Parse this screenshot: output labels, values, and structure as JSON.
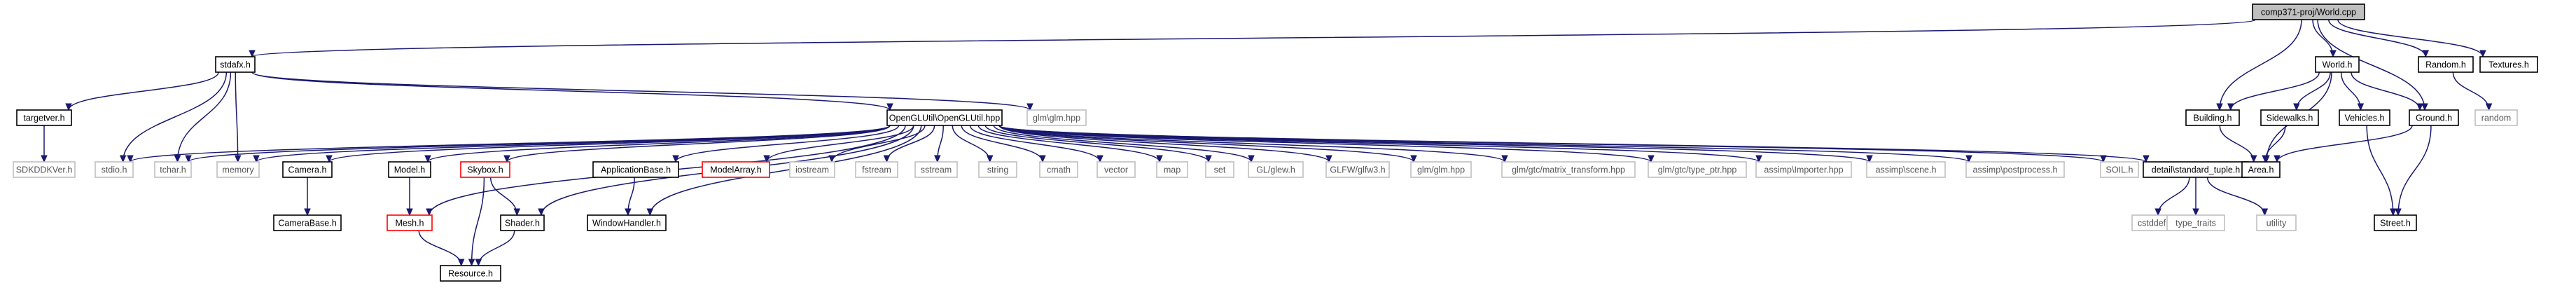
{
  "colors": {
    "edge": "#191970",
    "text": "#000000",
    "root_fill": "#bfbfbf",
    "node_border_normal": "#000000",
    "node_border_missing": "#ff0000",
    "node_border_system": "#bfbfbf",
    "system_text": "#555555"
  },
  "diagram": {
    "nodes": [
      {
        "id": "root",
        "label": "comp371-proj/World.cpp",
        "kind": "root"
      },
      {
        "id": "stdafx",
        "label": "stdafx.h",
        "kind": "normal"
      },
      {
        "id": "random",
        "label": "Random.h",
        "kind": "normal"
      },
      {
        "id": "textures",
        "label": "Textures.h",
        "kind": "normal"
      },
      {
        "id": "world",
        "label": "World.h",
        "kind": "normal"
      },
      {
        "id": "targetver",
        "label": "targetver.h",
        "kind": "normal"
      },
      {
        "id": "glm_glm_hpp_top",
        "label": "glm\\glm.hpp",
        "kind": "system"
      },
      {
        "id": "openglutil",
        "label": "OpenGLUtil\\OpenGLUtil.hpp",
        "kind": "normal"
      },
      {
        "id": "building",
        "label": "Building.h",
        "kind": "normal"
      },
      {
        "id": "sidewalks",
        "label": "Sidewalks.h",
        "kind": "normal"
      },
      {
        "id": "vehicles",
        "label": "Vehicles.h",
        "kind": "normal"
      },
      {
        "id": "ground",
        "label": "Ground.h",
        "kind": "normal"
      },
      {
        "id": "random_sys",
        "label": "random",
        "kind": "system"
      },
      {
        "id": "sdkddkver",
        "label": "SDKDDKVer.h",
        "kind": "system"
      },
      {
        "id": "stdio",
        "label": "stdio.h",
        "kind": "system"
      },
      {
        "id": "tchar",
        "label": "tchar.h",
        "kind": "system"
      },
      {
        "id": "memory",
        "label": "memory",
        "kind": "system"
      },
      {
        "id": "camera",
        "label": "Camera.h",
        "kind": "normal"
      },
      {
        "id": "model",
        "label": "Model.h",
        "kind": "normal"
      },
      {
        "id": "skybox",
        "label": "Skybox.h",
        "kind": "missing"
      },
      {
        "id": "appbase",
        "label": "ApplicationBase.h",
        "kind": "normal"
      },
      {
        "id": "modelarray",
        "label": "ModelArray.h",
        "kind": "missing"
      },
      {
        "id": "iostream",
        "label": "iostream",
        "kind": "system"
      },
      {
        "id": "fstream",
        "label": "fstream",
        "kind": "system"
      },
      {
        "id": "sstream",
        "label": "sstream",
        "kind": "system"
      },
      {
        "id": "string",
        "label": "string",
        "kind": "system"
      },
      {
        "id": "cmath",
        "label": "cmath",
        "kind": "system"
      },
      {
        "id": "vector",
        "label": "vector",
        "kind": "system"
      },
      {
        "id": "map",
        "label": "map",
        "kind": "system"
      },
      {
        "id": "set",
        "label": "set",
        "kind": "system"
      },
      {
        "id": "glew",
        "label": "GL/glew.h",
        "kind": "system"
      },
      {
        "id": "glfw3",
        "label": "GLFW/glfw3.h",
        "kind": "system"
      },
      {
        "id": "glm_glm",
        "label": "glm/glm.hpp",
        "kind": "system"
      },
      {
        "id": "glm_mt",
        "label": "glm/gtc/matrix_transform.hpp",
        "kind": "system"
      },
      {
        "id": "glm_tp",
        "label": "glm/gtc/type_ptr.hpp",
        "kind": "system"
      },
      {
        "id": "ai_importer",
        "label": "assimp\\Importer.hpp",
        "kind": "system"
      },
      {
        "id": "ai_scene",
        "label": "assimp\\scene.h",
        "kind": "system"
      },
      {
        "id": "ai_post",
        "label": "assimp\\postprocess.h",
        "kind": "system"
      },
      {
        "id": "soil",
        "label": "SOIL.h",
        "kind": "system"
      },
      {
        "id": "detail",
        "label": "detail\\standard_tuple.h",
        "kind": "normal"
      },
      {
        "id": "area",
        "label": "Area.h",
        "kind": "normal"
      },
      {
        "id": "street",
        "label": "Street.h",
        "kind": "normal"
      },
      {
        "id": "camerabase",
        "label": "CameraBase.h",
        "kind": "normal"
      },
      {
        "id": "mesh",
        "label": "Mesh.h",
        "kind": "missing"
      },
      {
        "id": "shader",
        "label": "Shader.h",
        "kind": "normal"
      },
      {
        "id": "windowhandler",
        "label": "WindowHandler.h",
        "kind": "normal"
      },
      {
        "id": "cstddef",
        "label": "cstddef",
        "kind": "system"
      },
      {
        "id": "type_traits",
        "label": "type_traits",
        "kind": "system"
      },
      {
        "id": "utility",
        "label": "utility",
        "kind": "system"
      },
      {
        "id": "resource",
        "label": "Resource.h",
        "kind": "normal"
      }
    ],
    "edges": [
      [
        "root",
        "stdafx"
      ],
      [
        "root",
        "random"
      ],
      [
        "root",
        "textures"
      ],
      [
        "root",
        "world"
      ],
      [
        "root",
        "building"
      ],
      [
        "root",
        "ground"
      ],
      [
        "stdafx",
        "targetver"
      ],
      [
        "stdafx",
        "glm_glm_hpp_top"
      ],
      [
        "stdafx",
        "openglutil"
      ],
      [
        "stdafx",
        "stdio"
      ],
      [
        "stdafx",
        "tchar"
      ],
      [
        "stdafx",
        "memory"
      ],
      [
        "targetver",
        "sdkddkver"
      ],
      [
        "random",
        "random_sys"
      ],
      [
        "world",
        "building"
      ],
      [
        "world",
        "sidewalks"
      ],
      [
        "world",
        "vehicles"
      ],
      [
        "world",
        "ground"
      ],
      [
        "world",
        "area"
      ],
      [
        "building",
        "area"
      ],
      [
        "sidewalks",
        "area"
      ],
      [
        "vehicles",
        "street"
      ],
      [
        "ground",
        "area"
      ],
      [
        "ground",
        "street"
      ],
      [
        "openglutil",
        "stdio"
      ],
      [
        "openglutil",
        "tchar"
      ],
      [
        "openglutil",
        "memory"
      ],
      [
        "openglutil",
        "camera"
      ],
      [
        "openglutil",
        "model"
      ],
      [
        "openglutil",
        "skybox"
      ],
      [
        "openglutil",
        "appbase"
      ],
      [
        "openglutil",
        "modelarray"
      ],
      [
        "openglutil",
        "iostream"
      ],
      [
        "openglutil",
        "fstream"
      ],
      [
        "openglutil",
        "sstream"
      ],
      [
        "openglutil",
        "string"
      ],
      [
        "openglutil",
        "cmath"
      ],
      [
        "openglutil",
        "vector"
      ],
      [
        "openglutil",
        "map"
      ],
      [
        "openglutil",
        "set"
      ],
      [
        "openglutil",
        "glew"
      ],
      [
        "openglutil",
        "glfw3"
      ],
      [
        "openglutil",
        "glm_glm"
      ],
      [
        "openglutil",
        "glm_mt"
      ],
      [
        "openglutil",
        "glm_tp"
      ],
      [
        "openglutil",
        "ai_importer"
      ],
      [
        "openglutil",
        "ai_scene"
      ],
      [
        "openglutil",
        "ai_post"
      ],
      [
        "openglutil",
        "soil"
      ],
      [
        "openglutil",
        "detail"
      ],
      [
        "openglutil",
        "mesh"
      ],
      [
        "openglutil",
        "shader"
      ],
      [
        "openglutil",
        "windowhandler"
      ],
      [
        "camera",
        "camerabase"
      ],
      [
        "model",
        "mesh"
      ],
      [
        "skybox",
        "shader"
      ],
      [
        "skybox",
        "resource"
      ],
      [
        "appbase",
        "windowhandler"
      ],
      [
        "mesh",
        "resource"
      ],
      [
        "shader",
        "resource"
      ],
      [
        "detail",
        "cstddef"
      ],
      [
        "detail",
        "type_traits"
      ],
      [
        "detail",
        "utility"
      ]
    ]
  }
}
